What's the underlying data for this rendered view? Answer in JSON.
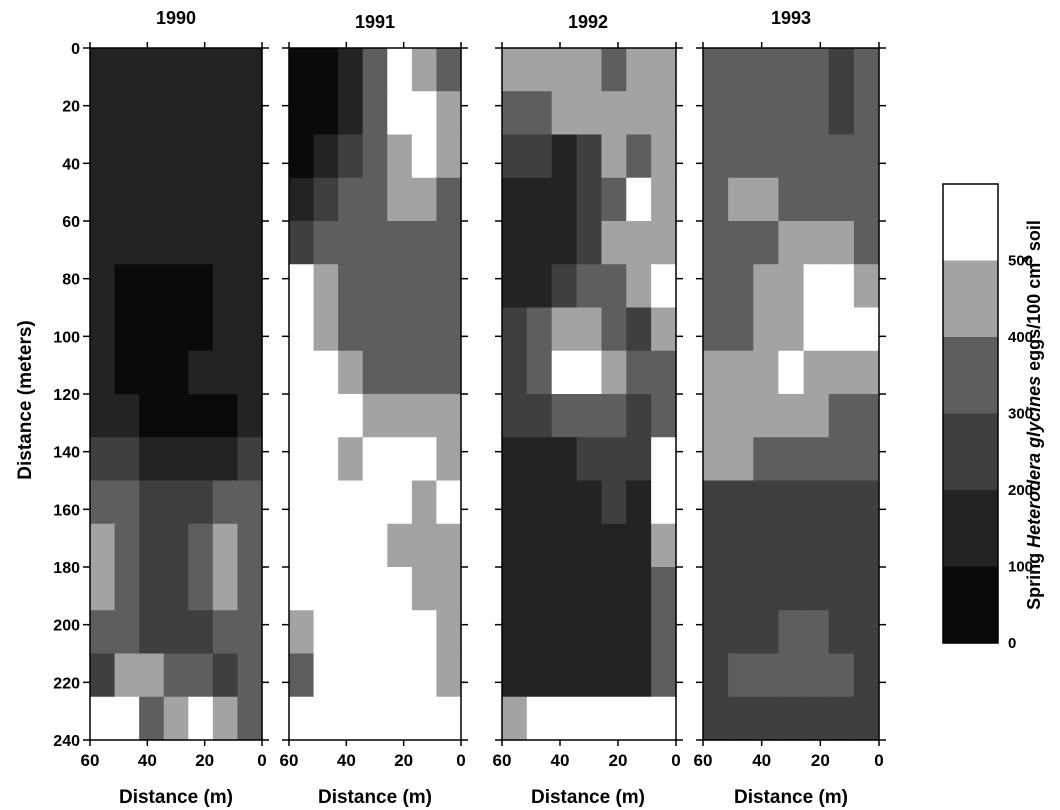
{
  "chart_data": {
    "type": "heatmap",
    "panels": [
      {
        "title": "1990",
        "xlabel": "Distance (m)"
      },
      {
        "title": "1991",
        "xlabel": "Distance (m)"
      },
      {
        "title": "1992",
        "xlabel": "Distance (m)"
      },
      {
        "title": "1993",
        "xlabel": "Distance (m)"
      }
    ],
    "ylabel": "Distance (meters)",
    "xlim": [
      60,
      0
    ],
    "ylim": [
      240,
      0
    ],
    "x_ticks": [
      60,
      40,
      20,
      0
    ],
    "y_ticks": [
      0,
      20,
      40,
      60,
      80,
      100,
      120,
      140,
      160,
      180,
      200,
      220,
      240
    ],
    "colorbar": {
      "label_prefix": "Spring ",
      "label_italic": "Heterodera glycines",
      "label_suffix": " eggs/100 cm",
      "label_superscript": "3",
      "label_end": " soil",
      "ticks": [
        0,
        100,
        200,
        300,
        400,
        500
      ],
      "levels": [
        {
          "range": [
            0,
            100
          ],
          "color": "#0a0a0a"
        },
        {
          "range": [
            100,
            200
          ],
          "color": "#232323"
        },
        {
          "range": [
            200,
            300
          ],
          "color": "#3f3f3f"
        },
        {
          "range": [
            300,
            400
          ],
          "color": "#5e5e5e"
        },
        {
          "range": [
            400,
            500
          ],
          "color": "#a3a3a3"
        },
        {
          "range": [
            500,
            600
          ],
          "color": "#ffffff"
        }
      ]
    },
    "grid_values_by_panel": [
      [
        [
          1,
          1,
          1,
          1,
          1,
          1,
          1
        ],
        [
          1,
          1,
          1,
          1,
          1,
          1,
          1
        ],
        [
          1,
          1,
          1,
          1,
          1,
          1,
          1
        ],
        [
          1,
          1,
          1,
          1,
          1,
          1,
          1
        ],
        [
          1,
          1,
          1,
          1,
          1,
          1,
          1
        ],
        [
          1,
          0,
          0,
          0,
          0,
          1,
          1
        ],
        [
          1,
          0,
          0,
          0,
          0,
          1,
          1
        ],
        [
          1,
          0,
          0,
          0,
          1,
          1,
          1
        ],
        [
          1,
          1,
          0,
          0,
          0,
          0,
          1
        ],
        [
          2,
          2,
          1,
          1,
          1,
          1,
          2
        ],
        [
          3,
          3,
          2,
          2,
          2,
          3,
          3
        ],
        [
          4,
          3,
          2,
          2,
          3,
          4,
          3
        ],
        [
          4,
          3,
          2,
          2,
          3,
          4,
          3
        ],
        [
          3,
          3,
          2,
          2,
          2,
          3,
          3
        ],
        [
          2,
          4,
          4,
          3,
          3,
          2,
          3
        ],
        [
          5,
          5,
          3,
          4,
          5,
          4,
          3
        ]
      ],
      [
        [
          0,
          0,
          1,
          3,
          5,
          4,
          3
        ],
        [
          0,
          0,
          1,
          3,
          5,
          5,
          4
        ],
        [
          0,
          1,
          2,
          3,
          4,
          5,
          4
        ],
        [
          1,
          2,
          3,
          3,
          4,
          4,
          3
        ],
        [
          2,
          3,
          3,
          3,
          3,
          3,
          3
        ],
        [
          5,
          4,
          3,
          3,
          3,
          3,
          3
        ],
        [
          5,
          4,
          3,
          3,
          3,
          3,
          3
        ],
        [
          5,
          5,
          4,
          3,
          3,
          3,
          3
        ],
        [
          5,
          5,
          5,
          4,
          4,
          4,
          4
        ],
        [
          5,
          5,
          4,
          5,
          5,
          5,
          4
        ],
        [
          5,
          5,
          5,
          5,
          5,
          4,
          5
        ],
        [
          5,
          5,
          5,
          5,
          4,
          4,
          4
        ],
        [
          5,
          5,
          5,
          5,
          5,
          4,
          4
        ],
        [
          4,
          5,
          5,
          5,
          5,
          5,
          4
        ],
        [
          3,
          5,
          5,
          5,
          5,
          5,
          4
        ],
        [
          5,
          5,
          5,
          5,
          5,
          5,
          5
        ]
      ],
      [
        [
          4,
          4,
          4,
          4,
          3,
          4,
          4
        ],
        [
          3,
          3,
          4,
          4,
          4,
          4,
          4
        ],
        [
          2,
          2,
          1,
          2,
          4,
          3,
          4
        ],
        [
          1,
          1,
          1,
          2,
          3,
          5,
          4
        ],
        [
          1,
          1,
          1,
          2,
          4,
          4,
          4
        ],
        [
          1,
          1,
          2,
          3,
          3,
          4,
          5
        ],
        [
          2,
          3,
          4,
          4,
          3,
          2,
          4
        ],
        [
          2,
          3,
          5,
          5,
          4,
          3,
          3
        ],
        [
          2,
          2,
          3,
          3,
          3,
          2,
          3
        ],
        [
          1,
          1,
          1,
          2,
          2,
          2,
          5
        ],
        [
          1,
          1,
          1,
          1,
          2,
          1,
          5
        ],
        [
          1,
          1,
          1,
          1,
          1,
          1,
          4
        ],
        [
          1,
          1,
          1,
          1,
          1,
          1,
          3
        ],
        [
          1,
          1,
          1,
          1,
          1,
          1,
          3
        ],
        [
          1,
          1,
          1,
          1,
          1,
          1,
          3
        ],
        [
          4,
          5,
          5,
          5,
          5,
          5,
          5
        ]
      ],
      [
        [
          3,
          3,
          3,
          3,
          3,
          2,
          3
        ],
        [
          3,
          3,
          3,
          3,
          3,
          2,
          3
        ],
        [
          3,
          3,
          3,
          3,
          3,
          3,
          3
        ],
        [
          3,
          4,
          4,
          3,
          3,
          3,
          3
        ],
        [
          3,
          3,
          3,
          4,
          4,
          4,
          3
        ],
        [
          3,
          3,
          4,
          4,
          5,
          5,
          4
        ],
        [
          3,
          3,
          4,
          4,
          5,
          5,
          5
        ],
        [
          4,
          4,
          4,
          5,
          4,
          4,
          4
        ],
        [
          4,
          4,
          4,
          4,
          4,
          3,
          3
        ],
        [
          4,
          4,
          3,
          3,
          3,
          3,
          3
        ],
        [
          2,
          2,
          2,
          2,
          2,
          2,
          2
        ],
        [
          2,
          2,
          2,
          2,
          2,
          2,
          2
        ],
        [
          2,
          2,
          2,
          2,
          2,
          2,
          2
        ],
        [
          2,
          2,
          2,
          3,
          3,
          2,
          2
        ],
        [
          2,
          3,
          3,
          3,
          3,
          3,
          2
        ],
        [
          2,
          2,
          2,
          2,
          2,
          2,
          2
        ]
      ]
    ]
  }
}
